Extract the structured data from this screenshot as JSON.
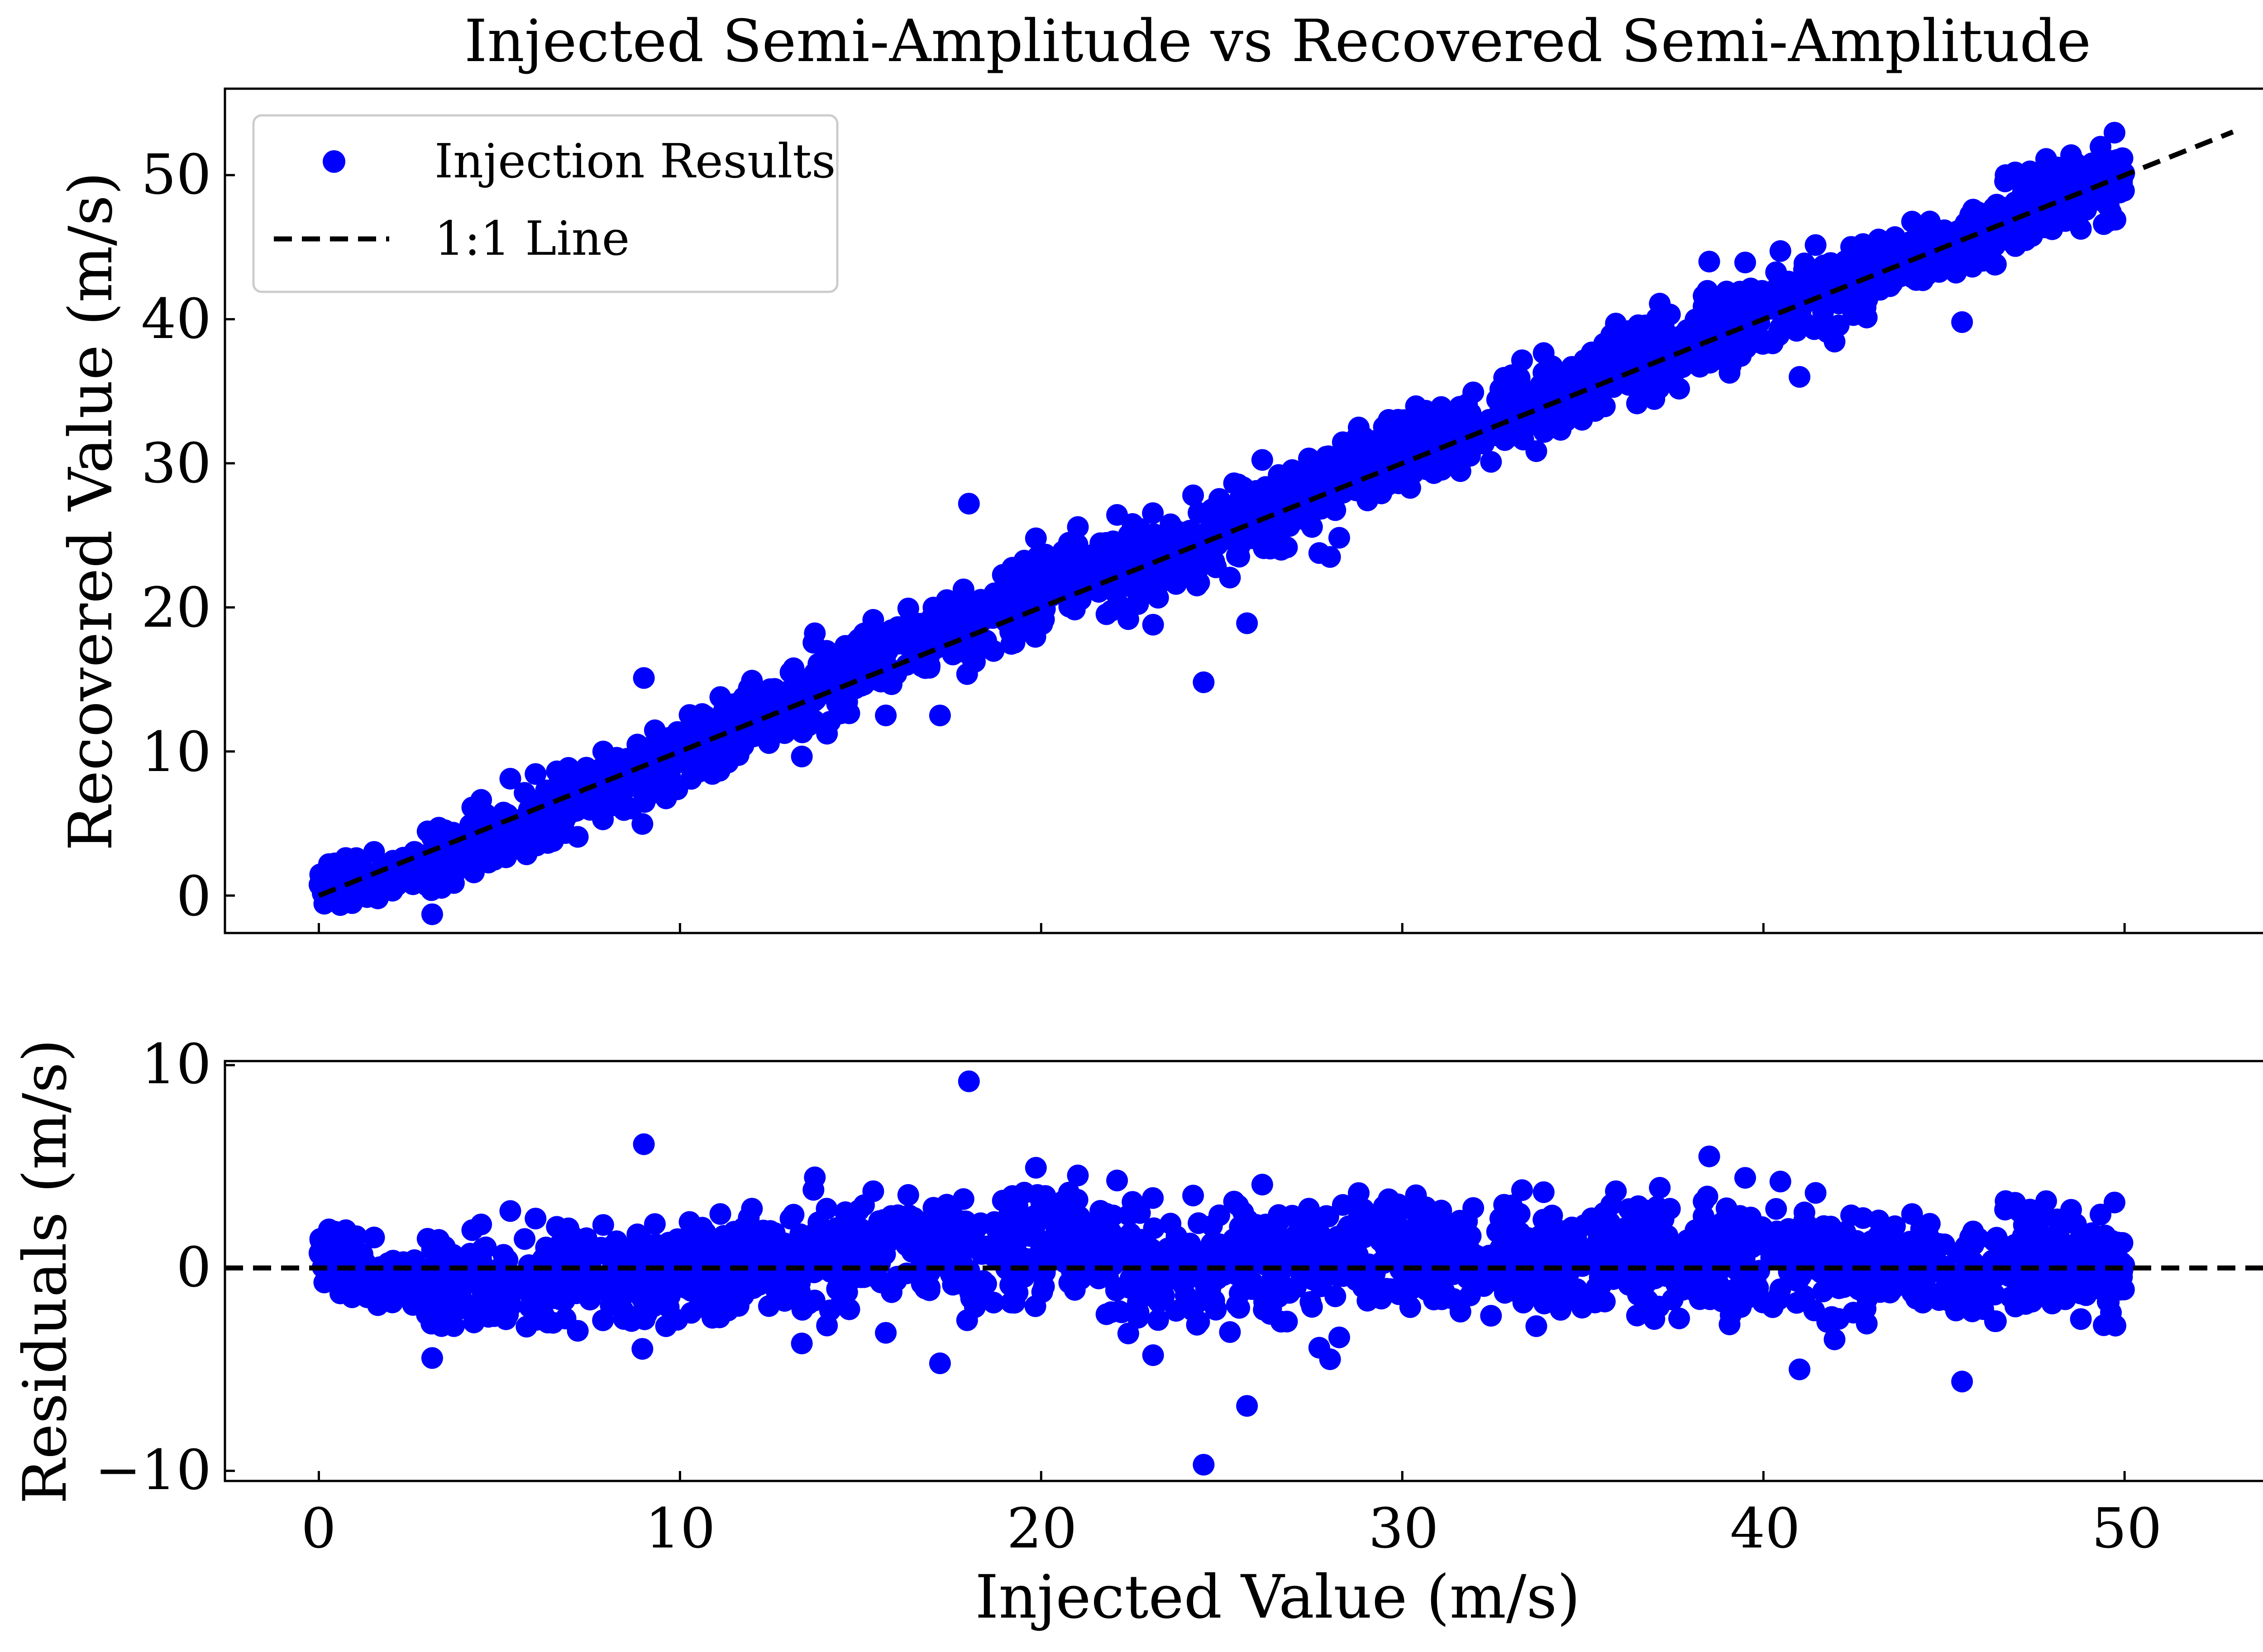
{
  "figure": {
    "title": "Injected Semi-Amplitude vs Recovered Semi-Amplitude"
  },
  "chart_data": [
    {
      "type": "scatter",
      "panel": "main",
      "title": "Injected Semi-Amplitude vs Recovered Semi-Amplitude",
      "xlabel": "",
      "ylabel": "Recovered Value (m/s)",
      "xlim": [
        -2.6,
        55.7
      ],
      "ylim": [
        -2.6,
        56.0
      ],
      "xticks": [
        0,
        10,
        20,
        30,
        40,
        50
      ],
      "yticks": [
        0,
        10,
        20,
        30,
        40,
        50
      ],
      "xtick_labels_visible": false,
      "grid": false,
      "legend": {
        "placement": "upper-left",
        "entries": [
          "Injection Results",
          "1:1 Line"
        ]
      },
      "marker_color": "#0000ff",
      "line_color": "#000000",
      "series": [
        {
          "name": "Injection Results",
          "style": "scatter",
          "description": "approx. 2000 injection-recovery points; envelope derived from plotted trend",
          "trend": [
            [
              0,
              0.8
            ],
            [
              2,
              1.4
            ],
            [
              4,
              3.0
            ],
            [
              6,
              5.0
            ],
            [
              8,
              7.5
            ],
            [
              10,
              9.8
            ],
            [
              12,
              12.3
            ],
            [
              14,
              14.9
            ],
            [
              16,
              17.2
            ],
            [
              18,
              18.9
            ],
            [
              20,
              21.5
            ],
            [
              22,
              22.7
            ],
            [
              24,
              24.0
            ],
            [
              26,
              26.4
            ],
            [
              28,
              28.5
            ],
            [
              30,
              31.0
            ],
            [
              32,
              32.3
            ],
            [
              34,
              34.3
            ],
            [
              36,
              36.6
            ],
            [
              38,
              38.5
            ],
            [
              40,
              40.5
            ],
            [
              42,
              42.2
            ],
            [
              44,
              44.3
            ],
            [
              46,
              46.0
            ],
            [
              48,
              48.5
            ],
            [
              50,
              50.2
            ]
          ],
          "outliers": [
            [
              18.0,
              27.2
            ],
            [
              24.5,
              14.8
            ],
            [
              25.7,
              18.9
            ],
            [
              9.0,
              15.1
            ],
            [
              23.1,
              18.8
            ],
            [
              38.5,
              44.0
            ],
            [
              45.5,
              39.8
            ],
            [
              41.0,
              36.0
            ],
            [
              17.2,
              12.5
            ],
            [
              28.0,
              23.5
            ]
          ]
        },
        {
          "name": "1:1 Line",
          "style": "dashed",
          "x": [
            0,
            53
          ],
          "y": [
            0,
            53
          ]
        }
      ]
    },
    {
      "type": "scatter",
      "panel": "residuals",
      "xlabel": "Injected Value (m/s)",
      "ylabel": "Residuals (m/s)",
      "xlim": [
        -2.6,
        55.7
      ],
      "ylim": [
        -10.5,
        10.2
      ],
      "xticks": [
        0,
        10,
        20,
        30,
        40,
        50
      ],
      "yticks": [
        -10,
        0,
        10
      ],
      "grid": false,
      "marker_color": "#0000ff",
      "reference_line": {
        "y": 0,
        "style": "dashed",
        "color": "#000000"
      },
      "series": [
        {
          "name": "Residuals",
          "style": "scatter",
          "residual_trend": [
            [
              0,
              0.8
            ],
            [
              2,
              -0.6
            ],
            [
              4,
              -1.0
            ],
            [
              6,
              -1.0
            ],
            [
              8,
              -0.5
            ],
            [
              10,
              -0.2
            ],
            [
              12,
              0.3
            ],
            [
              14,
              0.9
            ],
            [
              16,
              1.2
            ],
            [
              18,
              0.9
            ],
            [
              20,
              1.5
            ],
            [
              22,
              0.7
            ],
            [
              24,
              0.0
            ],
            [
              26,
              0.4
            ],
            [
              28,
              0.5
            ],
            [
              30,
              1.0
            ],
            [
              32,
              0.3
            ],
            [
              34,
              0.3
            ],
            [
              36,
              0.6
            ],
            [
              38,
              0.5
            ],
            [
              40,
              0.5
            ],
            [
              42,
              0.2
            ],
            [
              44,
              0.3
            ],
            [
              46,
              0.0
            ],
            [
              48,
              0.5
            ],
            [
              50,
              0.2
            ]
          ],
          "outliers": [
            [
              18.0,
              9.2
            ],
            [
              24.5,
              -9.7
            ],
            [
              25.7,
              -6.8
            ],
            [
              9.0,
              6.1
            ],
            [
              38.5,
              5.5
            ],
            [
              45.5,
              -5.6
            ],
            [
              41.0,
              -5.0
            ],
            [
              17.2,
              -4.7
            ],
            [
              28.0,
              -4.5
            ],
            [
              23.1,
              -4.3
            ]
          ]
        }
      ]
    }
  ],
  "main_panel": {
    "ylabel": "Recovered Value (m/s)",
    "yticks": [
      "0",
      "10",
      "20",
      "30",
      "40",
      "50"
    ],
    "legend": {
      "scatter_label": "Injection Results",
      "line_label": "1:1 Line"
    }
  },
  "residual_panel": {
    "ylabel": "Residuals (m/s)",
    "yticks": [
      "−10",
      "0",
      "10"
    ],
    "xlabel": "Injected Value (m/s)",
    "xticks": [
      "0",
      "10",
      "20",
      "30",
      "40",
      "50"
    ]
  }
}
